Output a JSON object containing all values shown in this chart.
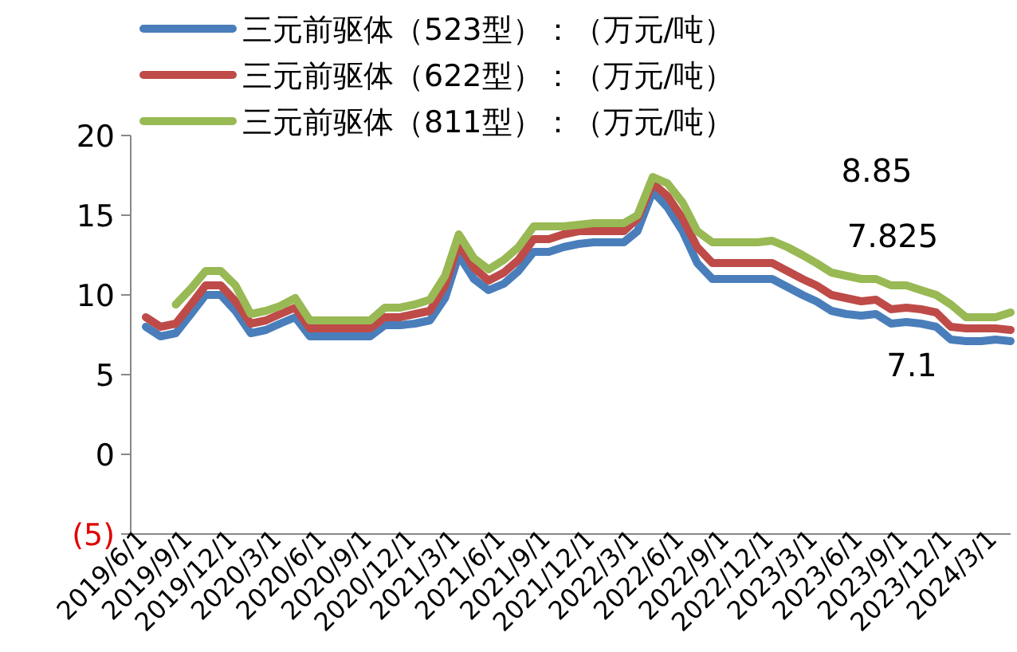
{
  "chart_data": {
    "type": "line",
    "legend": "top left",
    "grid": false,
    "marker": "none",
    "line_style": "solid",
    "x": [
      "2019-06",
      "2019-07",
      "2019-08",
      "2019-09",
      "2019-10",
      "2019-11",
      "2019-12",
      "2020-01",
      "2020-02",
      "2020-03",
      "2020-04",
      "2020-05",
      "2020-06",
      "2020-07",
      "2020-08",
      "2020-09",
      "2020-10",
      "2020-11",
      "2020-12",
      "2021-01",
      "2021-02",
      "2021-03",
      "2021-04",
      "2021-05",
      "2021-06",
      "2021-07",
      "2021-08",
      "2021-09",
      "2021-10",
      "2021-11",
      "2021-12",
      "2022-01",
      "2022-02",
      "2022-03",
      "2022-04",
      "2022-05",
      "2022-06",
      "2022-07",
      "2022-08",
      "2022-09",
      "2022-10",
      "2022-11",
      "2022-12",
      "2023-01",
      "2023-02",
      "2023-03",
      "2023-04",
      "2023-05",
      "2023-06",
      "2023-07",
      "2023-08",
      "2023-09",
      "2023-10",
      "2023-11",
      "2023-12",
      "2024-01",
      "2024-02",
      "2024-03",
      "2024-04"
    ],
    "series": [
      {
        "name": "三元前驱体（523型）：（万元/吨）",
        "color": "#4a7ebb",
        "values": [
          8.0,
          7.4,
          7.6,
          8.8,
          10.0,
          10.0,
          9.0,
          7.6,
          7.8,
          8.2,
          8.6,
          7.4,
          7.4,
          7.4,
          7.4,
          7.4,
          8.1,
          8.1,
          8.2,
          8.4,
          9.8,
          12.5,
          11.0,
          10.3,
          10.7,
          11.5,
          12.7,
          12.7,
          13.0,
          13.2,
          13.3,
          13.3,
          13.3,
          14.0,
          16.5,
          15.5,
          14.0,
          12.0,
          11.0,
          11.0,
          11.0,
          11.0,
          11.0,
          10.5,
          10.0,
          9.6,
          9.0,
          8.8,
          8.7,
          8.8,
          8.2,
          8.3,
          8.2,
          8.0,
          7.2,
          7.1,
          7.1,
          7.2,
          7.1
        ]
      },
      {
        "name": "三元前驱体（622型）：（万元/吨）",
        "color": "#be4b48",
        "values": [
          8.6,
          8.0,
          8.2,
          9.4,
          10.6,
          10.6,
          9.6,
          8.2,
          8.4,
          8.8,
          9.2,
          7.9,
          7.9,
          7.9,
          7.9,
          7.9,
          8.6,
          8.6,
          8.8,
          9.0,
          10.6,
          13.2,
          11.7,
          10.9,
          11.4,
          12.2,
          13.5,
          13.5,
          13.8,
          14.0,
          14.0,
          14.0,
          14.0,
          14.8,
          17.0,
          16.2,
          14.8,
          13.0,
          12.0,
          12.0,
          12.0,
          12.0,
          12.0,
          11.5,
          11.0,
          10.6,
          10.0,
          9.8,
          9.6,
          9.7,
          9.1,
          9.2,
          9.1,
          8.9,
          8.0,
          7.9,
          7.9,
          7.9,
          7.8
        ]
      },
      {
        "name": "三元前驱体（811型）：（万元/吨）",
        "color": "#98b954",
        "values": [
          null,
          null,
          9.4,
          10.4,
          11.5,
          11.5,
          10.6,
          8.8,
          9.0,
          9.3,
          9.8,
          8.4,
          8.4,
          8.4,
          8.4,
          8.4,
          9.2,
          9.2,
          9.4,
          9.7,
          11.2,
          13.8,
          12.3,
          11.6,
          12.2,
          13.0,
          14.3,
          14.3,
          14.3,
          14.4,
          14.5,
          14.5,
          14.5,
          15.0,
          17.4,
          17.0,
          15.8,
          14.0,
          13.3,
          13.3,
          13.3,
          13.3,
          13.4,
          13.0,
          12.5,
          12.0,
          11.4,
          11.2,
          11.0,
          11.0,
          10.6,
          10.6,
          10.3,
          10.0,
          9.4,
          8.6,
          8.6,
          8.6,
          8.9
        ]
      }
    ],
    "xlim": [
      "2019-05-15",
      "2024-04-15"
    ],
    "xticks": [
      {
        "value": "2019-06-01",
        "label": "2019/6/1"
      },
      {
        "value": "2019-09-01",
        "label": "2019/9/1"
      },
      {
        "value": "2019-12-01",
        "label": "2019/12/1"
      },
      {
        "value": "2020-03-01",
        "label": "2020/3/1"
      },
      {
        "value": "2020-06-01",
        "label": "2020/6/1"
      },
      {
        "value": "2020-09-01",
        "label": "2020/9/1"
      },
      {
        "value": "2020-12-01",
        "label": "2020/12/1"
      },
      {
        "value": "2021-03-01",
        "label": "2021/3/1"
      },
      {
        "value": "2021-06-01",
        "label": "2021/6/1"
      },
      {
        "value": "2021-09-01",
        "label": "2021/9/1"
      },
      {
        "value": "2021-12-01",
        "label": "2021/12/1"
      },
      {
        "value": "2022-03-01",
        "label": "2022/3/1"
      },
      {
        "value": "2022-06-01",
        "label": "2022/6/1"
      },
      {
        "value": "2022-09-01",
        "label": "2022/9/1"
      },
      {
        "value": "2022-12-01",
        "label": "2022/12/1"
      },
      {
        "value": "2023-03-01",
        "label": "2023/3/1"
      },
      {
        "value": "2023-06-01",
        "label": "2023/6/1"
      },
      {
        "value": "2023-09-01",
        "label": "2023/9/1"
      },
      {
        "value": "2023-12-01",
        "label": "2023/12/1"
      },
      {
        "value": "2024-03-01",
        "label": "2024/3/1"
      }
    ],
    "ylim": [
      -5,
      20
    ],
    "yticks": [
      {
        "value": -5,
        "label": "(5)"
      },
      0,
      5,
      10,
      15,
      20
    ],
    "annotations": [
      "8.85",
      "7.825",
      "7.1"
    ]
  }
}
